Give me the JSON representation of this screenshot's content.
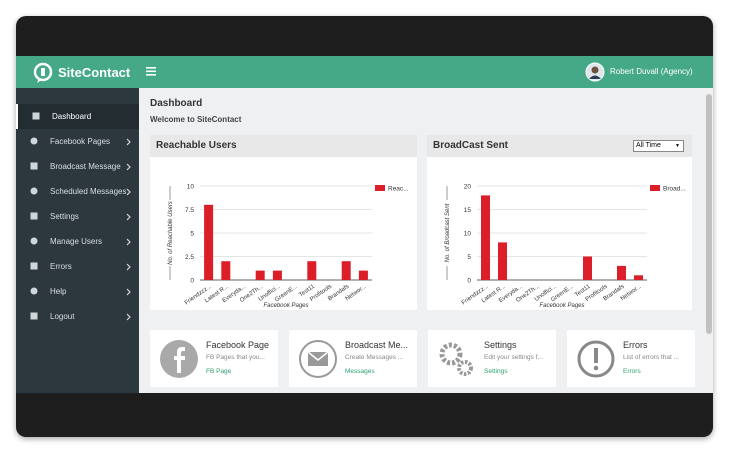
{
  "header": {
    "brand": "SiteContact",
    "user": "Robert Duvall (Agency)"
  },
  "sidebar": {
    "items": [
      "Dashboard",
      "Facebook Pages",
      "Broadcast Message",
      "Scheduled Messages",
      "Settings",
      "Manage Users",
      "Errors",
      "Help",
      "Logout"
    ]
  },
  "page": {
    "title": "Dashboard",
    "subtitle": "Welcome to SiteContact",
    "broadcast_filter": "All Time"
  },
  "chart_data": [
    {
      "type": "bar",
      "title": "Reachable Users",
      "xlabel": "Facebook Pages",
      "ylabel": "No. of Reachable Users",
      "categories": [
        "Friendzzz...",
        "Latest R...",
        "Everyda...",
        "One2Th...",
        "Unoffici...",
        "GreenE...",
        "Test11",
        "Profitools",
        "Brandafs",
        "Networ..."
      ],
      "series": [
        {
          "name": "Reac...",
          "color": "#dc1e28",
          "values": [
            8,
            2,
            0,
            1,
            1,
            0,
            2,
            0,
            2,
            1
          ]
        }
      ],
      "ylim": [
        0,
        10
      ],
      "yticks": [
        0,
        2.5,
        5,
        7.5,
        10
      ]
    },
    {
      "type": "bar",
      "title": "BroadCast Sent",
      "xlabel": "Facebook Pages",
      "ylabel": "No. of Broadcast Sent",
      "categories": [
        "Friendzzz...",
        "Latest R...",
        "Everyda...",
        "One2Th...",
        "Unoffici...",
        "GreenE...",
        "Test11",
        "Profitools",
        "Brandafs",
        "Networ..."
      ],
      "series": [
        {
          "name": "Broad...",
          "color": "#dc1e28",
          "values": [
            18,
            8,
            0,
            0,
            0,
            0,
            5,
            0,
            3,
            1
          ]
        }
      ],
      "ylim": [
        0,
        20
      ],
      "yticks": [
        0,
        5,
        10,
        15,
        20
      ]
    }
  ],
  "cards": [
    {
      "title": "Facebook Page",
      "text": "FB Pages that you...",
      "link": "FB Page"
    },
    {
      "title": "Broadcast Me...",
      "text": "Create Messages ...",
      "link": "Messages"
    },
    {
      "title": "Settings",
      "text": "Edit your settings f...",
      "link": "Settings"
    },
    {
      "title": "Errors",
      "text": "List of errors that ...",
      "link": "Errors"
    }
  ]
}
